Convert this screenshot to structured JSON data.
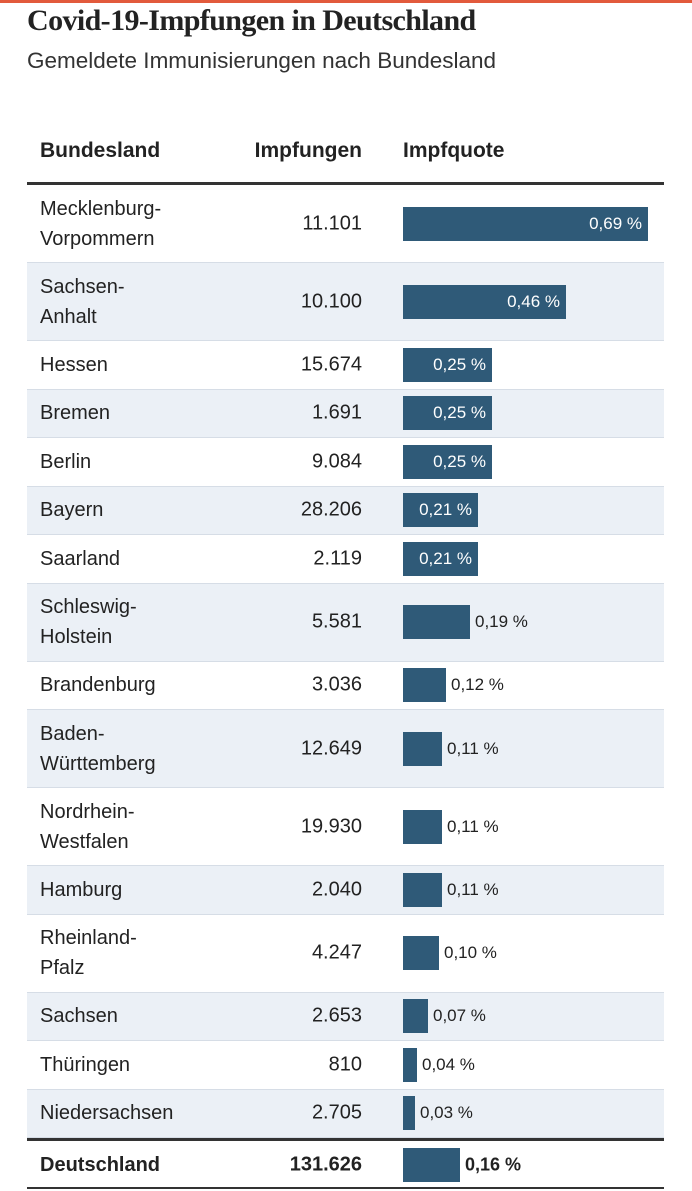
{
  "header": {
    "title": "Covid-19-Impfungen in Deutschland",
    "subtitle": "Gemeldete Immunisierungen nach Bundesland",
    "accent_color": "#e25a3c"
  },
  "table": {
    "columns": [
      "Bundesland",
      "Impfungen",
      "Impfquote"
    ]
  },
  "colors": {
    "bar": "#2f5a78",
    "row_alt": "#ebf0f6"
  },
  "chart_data": {
    "type": "bar",
    "orientation": "horizontal",
    "title": "Covid-19-Impfungen in Deutschland",
    "subtitle": "Gemeldete Immunisierungen nach Bundesland",
    "value_unit": "%",
    "xlim": [
      0,
      0.69
    ],
    "rows": [
      {
        "land": "Mecklenburg-\nVorpommern",
        "impfungen": "11.101",
        "quote": 0.69,
        "label": "0,69 %"
      },
      {
        "land": "Sachsen-\nAnhalt",
        "impfungen": "10.100",
        "quote": 0.46,
        "label": "0,46 %"
      },
      {
        "land": "Hessen",
        "impfungen": "15.674",
        "quote": 0.25,
        "label": "0,25 %"
      },
      {
        "land": "Bremen",
        "impfungen": "1.691",
        "quote": 0.25,
        "label": "0,25 %"
      },
      {
        "land": "Berlin",
        "impfungen": "9.084",
        "quote": 0.25,
        "label": "0,25 %"
      },
      {
        "land": "Bayern",
        "impfungen": "28.206",
        "quote": 0.21,
        "label": "0,21 %"
      },
      {
        "land": "Saarland",
        "impfungen": "2.119",
        "quote": 0.21,
        "label": "0,21 %"
      },
      {
        "land": "Schleswig-\nHolstein",
        "impfungen": "5.581",
        "quote": 0.19,
        "label": "0,19 %"
      },
      {
        "land": "Brandenburg",
        "impfungen": "3.036",
        "quote": 0.12,
        "label": "0,12 %"
      },
      {
        "land": "Baden-\nWürttemberg",
        "impfungen": "12.649",
        "quote": 0.11,
        "label": "0,11 %"
      },
      {
        "land": "Nordrhein-\nWestfalen",
        "impfungen": "19.930",
        "quote": 0.11,
        "label": "0,11 %"
      },
      {
        "land": "Hamburg",
        "impfungen": "2.040",
        "quote": 0.11,
        "label": "0,11 %"
      },
      {
        "land": "Rheinland-\nPfalz",
        "impfungen": "4.247",
        "quote": 0.1,
        "label": "0,10 %"
      },
      {
        "land": "Sachsen",
        "impfungen": "2.653",
        "quote": 0.07,
        "label": "0,07 %"
      },
      {
        "land": "Thüringen",
        "impfungen": "810",
        "quote": 0.04,
        "label": "0,04 %"
      },
      {
        "land": "Niedersachsen",
        "impfungen": "2.705",
        "quote": 0.03,
        "label": "0,03 %"
      }
    ],
    "total": {
      "land": "Deutschland",
      "impfungen": "131.626",
      "quote": 0.16,
      "label": "0,16 %"
    }
  }
}
